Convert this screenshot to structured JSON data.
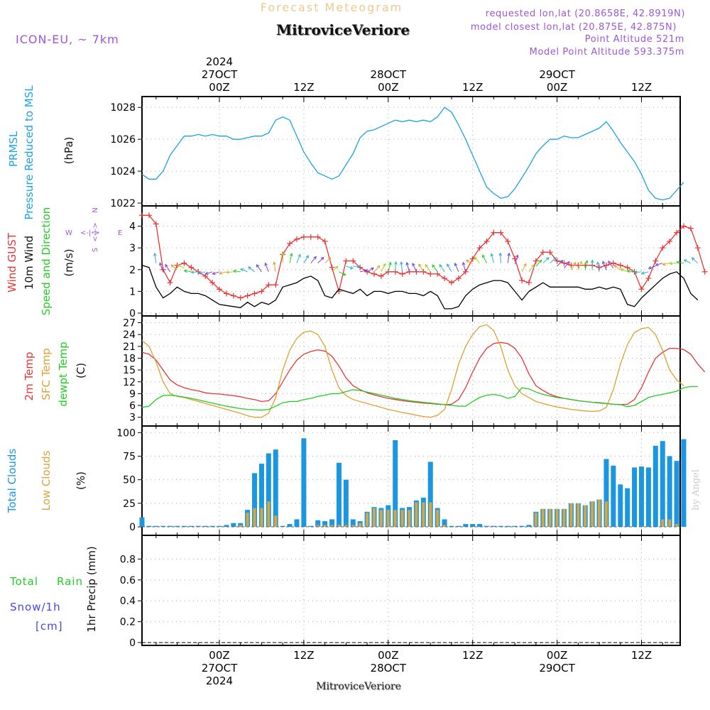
{
  "header": {
    "title_top": "Forecast Meteogram",
    "location": "MitroviceVeriore",
    "model": "ICON-EU, ~ 7km",
    "requested": "requested lon,lat (20.8658E, 42.8919N)",
    "closest": "model closest lon,lat (20.875E, 42.875N)",
    "point_altitude": "Point Altitude 521m",
    "model_altitude": "Model Point Altitude 593.375m",
    "footer_location": "MitroviceVeriore",
    "watermark": "by Angel"
  },
  "time_axis": {
    "top_labels": [
      {
        "hour": 24,
        "lines": [
          "2024",
          "27OCT",
          "00Z"
        ]
      },
      {
        "hour": 36,
        "lines": [
          "12Z"
        ]
      },
      {
        "hour": 48,
        "lines": [
          "28OCT",
          "00Z"
        ]
      },
      {
        "hour": 60,
        "lines": [
          "12Z"
        ]
      },
      {
        "hour": 72,
        "lines": [
          "29OCT",
          "00Z"
        ]
      },
      {
        "hour": 84,
        "lines": [
          "12Z"
        ]
      }
    ],
    "bottom_labels": [
      {
        "hour": 24,
        "lines": [
          "00Z",
          "27OCT",
          "2024"
        ]
      },
      {
        "hour": 36,
        "lines": [
          "12Z"
        ]
      },
      {
        "hour": 48,
        "lines": [
          "00Z",
          "28OCT"
        ]
      },
      {
        "hour": 60,
        "lines": [
          "12Z"
        ]
      },
      {
        "hour": 72,
        "lines": [
          "00Z",
          "29OCT"
        ]
      },
      {
        "hour": 84,
        "lines": [
          "12Z"
        ]
      }
    ],
    "xlim": [
      13,
      89.5
    ]
  },
  "colors": {
    "pressure": "#1ba2e3",
    "gust": "#e83535",
    "wind": "#000000",
    "temp": "#e83535",
    "sfc_temp": "#e0a030",
    "dewpt": "#22cc22",
    "total_clouds": "#1b96e0",
    "low_clouds": "#d6a640",
    "rain": "#22cc22",
    "snow": "#4444ee",
    "purple": "#a055d6",
    "title_orange": "#f0c890"
  },
  "chart_data": [
    {
      "type": "line",
      "panel": "pressure",
      "ylabel_lines": [
        "PRMSL",
        "Pressure Reduced to MSL"
      ],
      "unit": "(hPa)",
      "ylim": [
        1022,
        1028.5
      ],
      "yticks": [
        1022,
        1024,
        1026,
        1028
      ],
      "x_start": 13,
      "x_step": 1,
      "series": [
        {
          "name": "PRMSL",
          "values": [
            1023.8,
            1023.5,
            1023.5,
            1024.0,
            1025.0,
            1025.6,
            1026.2,
            1026.2,
            1026.3,
            1026.2,
            1026.3,
            1026.2,
            1026.2,
            1026.0,
            1026.0,
            1026.1,
            1026.2,
            1026.2,
            1026.4,
            1027.2,
            1027.4,
            1027.2,
            1026.2,
            1025.2,
            1024.5,
            1023.9,
            1023.7,
            1023.5,
            1023.7,
            1024.4,
            1025.1,
            1026.1,
            1026.5,
            1026.6,
            1026.8,
            1027.0,
            1027.2,
            1027.1,
            1027.2,
            1027.1,
            1027.2,
            1027.1,
            1027.4,
            1028.0,
            1027.7,
            1026.9,
            1026.0,
            1025.0,
            1024.0,
            1023.0,
            1022.6,
            1022.3,
            1022.4,
            1022.9,
            1023.6,
            1024.3,
            1025.1,
            1025.6,
            1026.0,
            1026.0,
            1026.2,
            1026.1,
            1026.1,
            1026.3,
            1026.5,
            1026.7,
            1027.1,
            1026.5,
            1025.8,
            1025.2,
            1024.6,
            1023.8,
            1022.8,
            1022.3,
            1022.2,
            1022.3,
            1022.8,
            1023.3
          ]
        }
      ]
    },
    {
      "type": "line",
      "panel": "wind",
      "ylabel_lines": [
        "Wind GUST",
        "10m Wind",
        "Speed and Direction"
      ],
      "unit": "(m/s)",
      "ylim": [
        0,
        4.8
      ],
      "yticks": [
        0,
        1,
        2,
        3,
        4
      ],
      "compass": {
        "n": "N",
        "s": "S",
        "w": "W",
        "e": "E",
        "arrow": "<-|->"
      },
      "x_start": 13,
      "x_step": 1,
      "series": [
        {
          "name": "Wind GUST",
          "values": [
            4.5,
            4.5,
            4.1,
            2.0,
            1.4,
            2.2,
            2.3,
            2.1,
            1.9,
            1.7,
            1.4,
            1.1,
            0.9,
            0.8,
            0.7,
            0.8,
            0.9,
            1.0,
            1.3,
            1.3,
            2.7,
            3.2,
            3.4,
            3.5,
            3.5,
            3.5,
            3.3,
            2.1,
            1.0,
            2.4,
            2.4,
            2.1,
            1.9,
            1.8,
            1.7,
            1.9,
            1.9,
            1.8,
            1.9,
            1.9,
            1.9,
            1.8,
            1.8,
            1.6,
            1.4,
            1.6,
            1.9,
            2.5,
            3.0,
            3.3,
            3.7,
            3.7,
            3.3,
            2.5,
            1.5,
            1.4,
            2.4,
            2.8,
            2.8,
            2.4,
            2.3,
            2.2,
            2.2,
            2.2,
            2.2,
            2.1,
            2.2,
            2.3,
            2.2,
            2.1,
            1.9,
            1.1,
            1.6,
            2.4,
            3.0,
            3.3,
            3.7,
            4.0,
            3.9,
            3.0,
            1.9
          ]
        },
        {
          "name": "10m Wind",
          "values": [
            2.2,
            2.1,
            1.2,
            0.7,
            0.9,
            1.2,
            1.0,
            0.9,
            0.9,
            0.8,
            0.6,
            0.4,
            0.35,
            0.3,
            0.25,
            0.5,
            0.3,
            0.5,
            0.4,
            0.6,
            1.2,
            1.3,
            1.4,
            1.6,
            1.7,
            1.5,
            0.8,
            0.7,
            1.1,
            1.0,
            0.9,
            1.1,
            0.8,
            1.0,
            1.0,
            0.9,
            1.0,
            1.0,
            0.9,
            0.9,
            0.8,
            1.0,
            0.8,
            0.2,
            0.2,
            0.3,
            0.8,
            1.1,
            1.3,
            1.4,
            1.5,
            1.5,
            1.4,
            1.0,
            0.6,
            1.0,
            1.2,
            1.4,
            1.2,
            1.2,
            1.2,
            1.2,
            1.2,
            1.1,
            1.1,
            1.2,
            1.1,
            1.2,
            1.1,
            0.4,
            0.3,
            0.7,
            1.0,
            1.3,
            1.6,
            1.8,
            1.9,
            1.6,
            0.9,
            0.6
          ]
        }
      ]
    },
    {
      "type": "line",
      "panel": "temperature",
      "ylabel_lines": [
        "2m Temp",
        "SFC Temp",
        "dewpt Temp"
      ],
      "unit": "(C)",
      "ylim": [
        1.5,
        28
      ],
      "yticks": [
        3,
        6,
        9,
        12,
        15,
        18,
        21,
        24,
        27
      ],
      "x_start": 13,
      "x_step": 1,
      "series": [
        {
          "name": "2m Temp",
          "values": [
            19.5,
            19.0,
            17.5,
            15.0,
            12.5,
            11.2,
            10.5,
            10.0,
            9.7,
            9.2,
            9.0,
            8.9,
            8.7,
            8.5,
            8.2,
            7.8,
            7.5,
            7.0,
            7.2,
            9.0,
            12.0,
            15.0,
            17.5,
            19.0,
            19.7,
            20.1,
            19.8,
            18.5,
            16.0,
            13.0,
            11.0,
            10.0,
            9.2,
            8.7,
            8.2,
            7.8,
            7.5,
            7.2,
            7.0,
            6.8,
            6.6,
            6.5,
            6.3,
            6.2,
            6.3,
            7.5,
            10.5,
            14.5,
            18.0,
            20.5,
            21.7,
            22.0,
            21.7,
            20.5,
            18.0,
            14.0,
            11.0,
            9.8,
            8.8,
            8.2,
            7.8,
            7.5,
            7.2,
            7.0,
            6.8,
            6.7,
            6.5,
            6.3,
            6.2,
            6.3,
            7.5,
            10.5,
            14.5,
            18.0,
            19.5,
            20.5,
            20.5,
            20.2,
            19.0,
            16.5,
            14.5
          ]
        },
        {
          "name": "SFC Temp",
          "values": [
            22.5,
            21.0,
            17.0,
            12.0,
            9.0,
            8.3,
            8.0,
            7.5,
            7.0,
            6.5,
            6.0,
            5.5,
            5.0,
            4.5,
            4.0,
            3.4,
            3.0,
            3.0,
            4.0,
            8.0,
            15.0,
            20.0,
            23.0,
            24.6,
            24.9,
            24.0,
            21.0,
            15.0,
            10.5,
            8.5,
            7.5,
            7.0,
            6.5,
            6.0,
            5.5,
            5.0,
            4.6,
            4.2,
            3.9,
            3.5,
            3.2,
            3.0,
            3.5,
            5.0,
            10.0,
            16.5,
            21.0,
            24.0,
            26.0,
            26.5,
            25.0,
            21.0,
            15.0,
            11.0,
            9.0,
            8.0,
            7.0,
            6.5,
            6.0,
            5.6,
            5.3,
            5.0,
            4.8,
            4.6,
            4.5,
            4.6,
            5.5,
            10.0,
            16.5,
            21.5,
            24.5,
            25.5,
            25.8,
            24.0,
            20.0,
            15.0,
            12.5,
            11.0
          ]
        },
        {
          "name": "dewpt Temp",
          "values": [
            5.5,
            5.8,
            7.5,
            8.5,
            8.6,
            8.4,
            8.1,
            7.8,
            7.4,
            7.0,
            6.6,
            6.2,
            5.8,
            5.5,
            5.2,
            5.0,
            4.9,
            4.8,
            5.0,
            5.8,
            6.7,
            7.0,
            7.0,
            7.5,
            7.8,
            8.3,
            8.6,
            9.0,
            9.0,
            9.5,
            10.0,
            9.8,
            9.4,
            9.0,
            8.6,
            8.2,
            7.8,
            7.5,
            7.2,
            7.0,
            6.8,
            6.6,
            6.4,
            6.2,
            6.0,
            5.8,
            5.8,
            7.0,
            8.0,
            8.6,
            8.8,
            8.5,
            7.8,
            8.3,
            10.5,
            10.2,
            9.4,
            8.8,
            8.4,
            8.0,
            7.8,
            7.5,
            7.2,
            7.0,
            6.8,
            6.6,
            6.5,
            6.3,
            6.2,
            5.7,
            6.0,
            7.0,
            8.0,
            8.5,
            8.8,
            9.2,
            9.6,
            10.5,
            10.8,
            10.8
          ]
        }
      ]
    },
    {
      "type": "bar",
      "panel": "clouds",
      "ylabel_lines": [
        "Total Clouds",
        "Low Clouds"
      ],
      "unit": "(%)",
      "ylim": [
        -6,
        104
      ],
      "yticks": [
        0,
        25,
        50,
        75,
        100
      ],
      "x_start": 13,
      "x_step": 1,
      "series": [
        {
          "name": "Total Clouds",
          "values": [
            10,
            1,
            1,
            1,
            1,
            1,
            1,
            1,
            1,
            1,
            1,
            1,
            2,
            4,
            4,
            18,
            57,
            67,
            78,
            82,
            1,
            3,
            8,
            94,
            1,
            7,
            6,
            8,
            68,
            50,
            8,
            6,
            16,
            21,
            20,
            23,
            92,
            20,
            21,
            28,
            31,
            69,
            20,
            8,
            1,
            1,
            3,
            3,
            3,
            1,
            1,
            1,
            1,
            1,
            1,
            2,
            16,
            19,
            19,
            19,
            19,
            25,
            25,
            23,
            27,
            29,
            72,
            65,
            45,
            41,
            63,
            64,
            63,
            86,
            91,
            75,
            70,
            93
          ]
        },
        {
          "name": "Low Clouds",
          "values": [
            0,
            0,
            0,
            0,
            0,
            0,
            0,
            0,
            0,
            0,
            0,
            0,
            0,
            0,
            2,
            15,
            20,
            20,
            27,
            12,
            0,
            0,
            0,
            0,
            0,
            2,
            2,
            2,
            2,
            2,
            2,
            4,
            15,
            20,
            18,
            18,
            18,
            18,
            18,
            26,
            26,
            26,
            18,
            2,
            0,
            0,
            0,
            0,
            0,
            0,
            0,
            0,
            0,
            0,
            0,
            0,
            15,
            19,
            19,
            19,
            19,
            25,
            25,
            23,
            27,
            29,
            27,
            0,
            0,
            0,
            0,
            0,
            0,
            0,
            8,
            8,
            3,
            0
          ]
        }
      ]
    },
    {
      "type": "bar",
      "panel": "precip",
      "ylabel_lines": [
        "1hr Precip (mm)"
      ],
      "legend": {
        "rain_a": "Total",
        "rain_b": "Rain",
        "snow": "Snow/1h",
        "cm": "[cm]"
      },
      "ylim": [
        0,
        1.0
      ],
      "yticks": [
        "0",
        "0.2",
        "0.4",
        "0.6",
        "0.8"
      ],
      "x_start": 13,
      "x_step": 1,
      "series": [
        {
          "name": "Total Rain",
          "values": []
        }
      ]
    }
  ]
}
